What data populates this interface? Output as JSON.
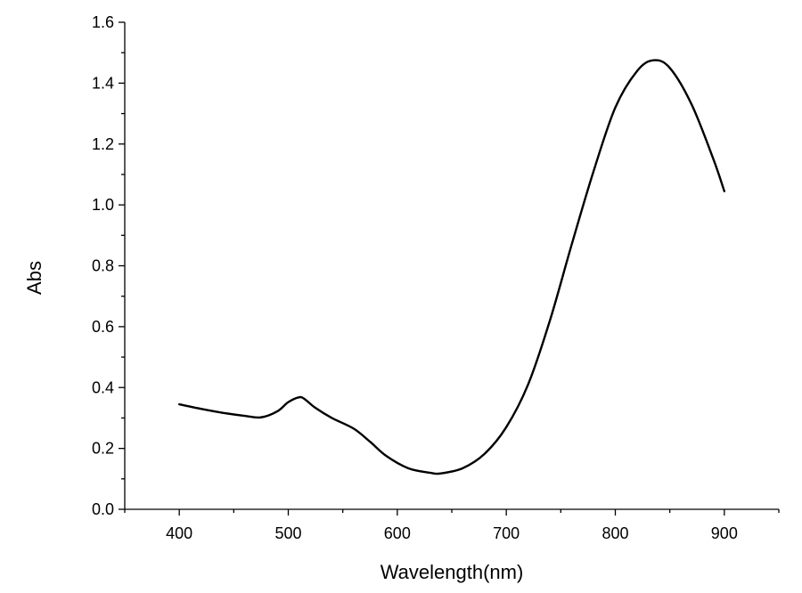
{
  "chart_data": {
    "type": "line",
    "xlabel": "Wavelength(nm)",
    "ylabel": "Abs",
    "xlim": [
      350,
      950
    ],
    "ylim": [
      0.0,
      1.6
    ],
    "x_ticks": [
      400,
      500,
      600,
      700,
      800,
      900
    ],
    "x_tick_labels": [
      "400",
      "500",
      "600",
      "700",
      "800",
      "900"
    ],
    "y_ticks": [
      0.0,
      0.2,
      0.4,
      0.6,
      0.8,
      1.0,
      1.2,
      1.4,
      1.6
    ],
    "y_tick_labels": [
      "0.0",
      "0.2",
      "0.4",
      "0.6",
      "0.8",
      "1.0",
      "1.2",
      "1.4",
      "1.6"
    ],
    "grid": false,
    "series": [
      {
        "color": "#000000",
        "x": [
          400,
          420,
          440,
          460,
          475,
          490,
          500,
          510,
          515,
          525,
          540,
          560,
          575,
          590,
          610,
          630,
          640,
          660,
          680,
          700,
          720,
          740,
          760,
          780,
          800,
          820,
          835,
          850,
          870,
          890,
          900
        ],
        "y": [
          0.345,
          0.33,
          0.317,
          0.307,
          0.302,
          0.322,
          0.352,
          0.368,
          0.362,
          0.333,
          0.3,
          0.265,
          0.222,
          0.175,
          0.135,
          0.12,
          0.118,
          0.135,
          0.182,
          0.27,
          0.41,
          0.62,
          0.87,
          1.11,
          1.32,
          1.44,
          1.475,
          1.45,
          1.33,
          1.15,
          1.045
        ]
      }
    ]
  }
}
